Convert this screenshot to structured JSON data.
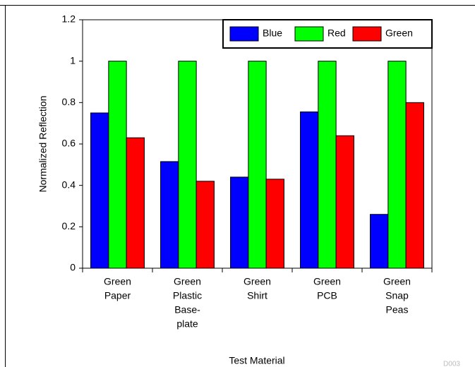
{
  "chart_data": {
    "type": "bar",
    "categories": [
      [
        "Green",
        "Paper"
      ],
      [
        "Green",
        "Plastic",
        "Base-",
        "plate"
      ],
      [
        "Green",
        "Shirt"
      ],
      [
        "Green",
        "PCB"
      ],
      [
        "Green",
        "Snap",
        "Peas"
      ]
    ],
    "series": [
      {
        "name": "Blue",
        "color": "#0000ff",
        "values": [
          0.75,
          0.515,
          0.44,
          0.755,
          0.26
        ]
      },
      {
        "name": "Red",
        "color": "#00ff00",
        "values": [
          1,
          1,
          1,
          1,
          1
        ]
      },
      {
        "name": "Green",
        "color": "#ff0000",
        "values": [
          0.63,
          0.42,
          0.43,
          0.64,
          0.8
        ]
      }
    ],
    "ylim": [
      0,
      1.2
    ],
    "yticks": [
      0,
      0.2,
      0.4,
      0.6,
      0.8,
      1,
      1.2
    ],
    "y_label": "Normalized Reflection",
    "x_label": "Test Material",
    "legend": "top-right",
    "note": "D003"
  }
}
